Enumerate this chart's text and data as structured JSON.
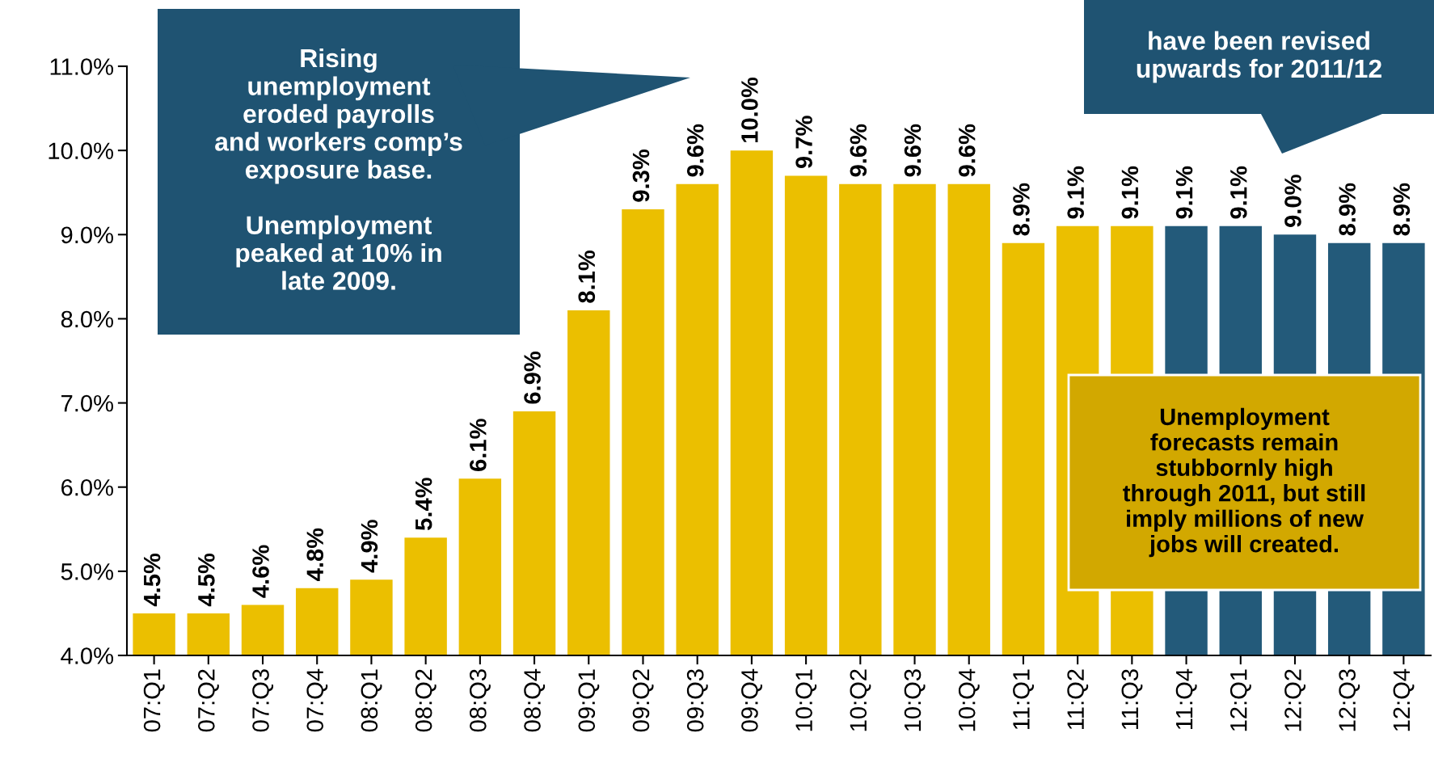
{
  "chart_data": {
    "type": "bar",
    "categories": [
      "07:Q1",
      "07:Q2",
      "07:Q3",
      "07:Q4",
      "08:Q1",
      "08:Q2",
      "08:Q3",
      "08:Q4",
      "09:Q1",
      "09:Q2",
      "09:Q3",
      "09:Q4",
      "10:Q1",
      "10:Q2",
      "10:Q3",
      "10:Q4",
      "11:Q1",
      "11:Q2",
      "11:Q3",
      "11:Q4",
      "12:Q1",
      "12:Q2",
      "12:Q3",
      "12:Q4"
    ],
    "values": [
      4.5,
      4.5,
      4.6,
      4.8,
      4.9,
      5.4,
      6.1,
      6.9,
      8.1,
      9.3,
      9.6,
      10.0,
      9.7,
      9.6,
      9.6,
      9.6,
      8.9,
      9.1,
      9.1,
      9.1,
      9.1,
      9.0,
      8.9,
      8.9
    ],
    "value_labels": [
      "4.5%",
      "4.5%",
      "4.6%",
      "4.8%",
      "4.9%",
      "5.4%",
      "6.1%",
      "6.9%",
      "8.1%",
      "9.3%",
      "9.6%",
      "10.0%",
      "9.7%",
      "9.6%",
      "9.6%",
      "9.6%",
      "8.9%",
      "9.1%",
      "9.1%",
      "9.1%",
      "9.1%",
      "9.0%",
      "8.9%",
      "8.9%"
    ],
    "colors": [
      "#ebbf00",
      "#ebbf00",
      "#ebbf00",
      "#ebbf00",
      "#ebbf00",
      "#ebbf00",
      "#ebbf00",
      "#ebbf00",
      "#ebbf00",
      "#ebbf00",
      "#ebbf00",
      "#ebbf00",
      "#ebbf00",
      "#ebbf00",
      "#ebbf00",
      "#ebbf00",
      "#ebbf00",
      "#ebbf00",
      "#ebbf00",
      "#235a7a",
      "#235a7a",
      "#235a7a",
      "#235a7a",
      "#235a7a"
    ],
    "ylim": [
      4.0,
      11.0
    ],
    "yticks": [
      {
        "value": 4.0,
        "label": "4.0%"
      },
      {
        "value": 5.0,
        "label": "5.0%"
      },
      {
        "value": 6.0,
        "label": "6.0%"
      },
      {
        "value": 7.0,
        "label": "7.0%"
      },
      {
        "value": 8.0,
        "label": "8.0%"
      },
      {
        "value": 9.0,
        "label": "9.0%"
      },
      {
        "value": 10.0,
        "label": "10.0%"
      },
      {
        "value": 11.0,
        "label": "11.0%"
      }
    ],
    "grid": false,
    "annotations": [
      "Rising\nunemployment\neroded payrolls\nand workers comp’s\nexposure base.\n\nUnemployment\npeaked at 10% in\nlate 2009.",
      "have been revised\nupwards for 2011/12",
      "Unemployment\nforecasts remain\nstubbornly high\nthrough 2011, but still\nimply millions of new\njobs will created."
    ]
  }
}
